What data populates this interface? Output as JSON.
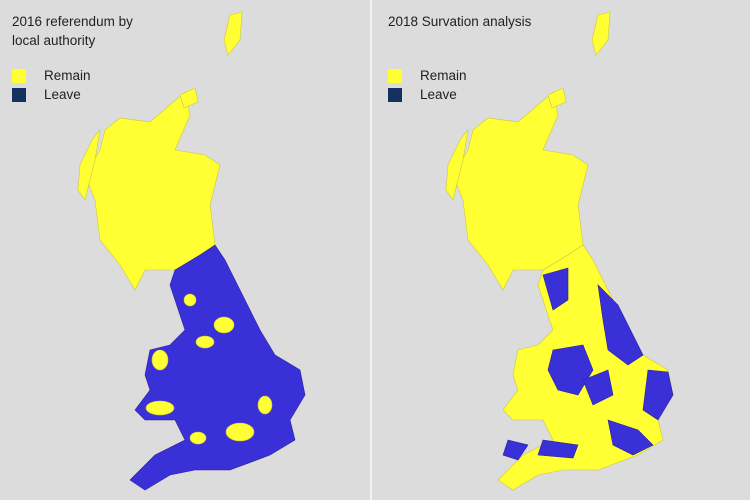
{
  "panels": [
    {
      "title": "2016 referendum by local authority",
      "legend": [
        {
          "label": "Remain"
        },
        {
          "label": "Leave"
        }
      ]
    },
    {
      "title": "2018 Survation analysis",
      "legend": [
        {
          "label": "Remain"
        },
        {
          "label": "Leave"
        }
      ]
    }
  ]
}
